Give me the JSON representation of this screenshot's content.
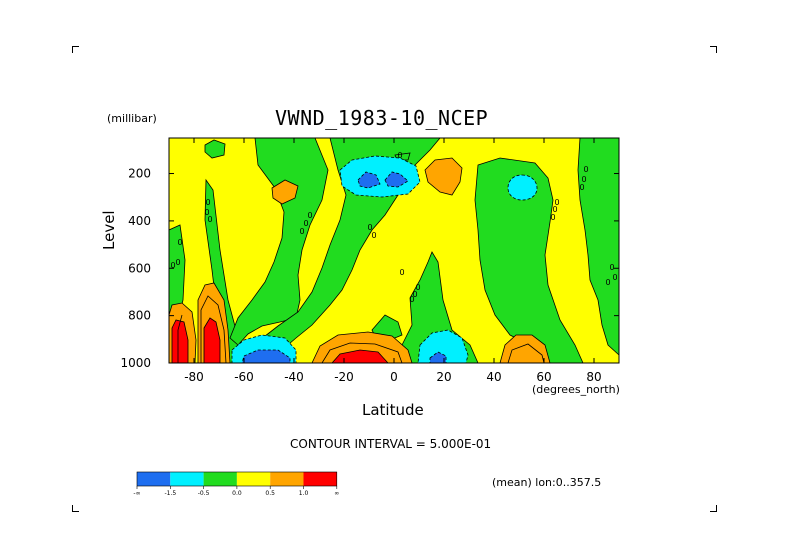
{
  "chart_data": {
    "type": "heatmap",
    "title": "VWND_1983-10_NCEP",
    "xlabel": "Latitude",
    "ylabel": "Level",
    "x_unit": "(degrees_north)",
    "y_unit": "(millibar)",
    "xlim": [
      -90,
      90
    ],
    "ylim": [
      1000,
      50
    ],
    "y_reversed": true,
    "x_ticks": [
      "-80",
      "-60",
      "-40",
      "-20",
      "0",
      "20",
      "40",
      "60",
      "80"
    ],
    "x_tick_values": [
      -80,
      -60,
      -40,
      -20,
      0,
      20,
      40,
      60,
      80
    ],
    "y_ticks": [
      "200",
      "400",
      "600",
      "800",
      "1000"
    ],
    "y_tick_values": [
      200,
      400,
      600,
      800,
      1000
    ],
    "contour_interval_text": "CONTOUR INTERVAL = 5.000E-01",
    "contour_interval": 0.5,
    "mean_text": "(mean) lon:0..357.5",
    "colorbar": {
      "colors": [
        "#1e6ef0",
        "#00f0ff",
        "#21dc1f",
        "#ffff00",
        "#ffa500",
        "#ff0000"
      ],
      "labels": [
        "-∞",
        "-1.5",
        "-0.5",
        "0.0",
        "0.5",
        "1.0",
        "∞"
      ]
    },
    "contour_labels": [
      "0"
    ]
  }
}
